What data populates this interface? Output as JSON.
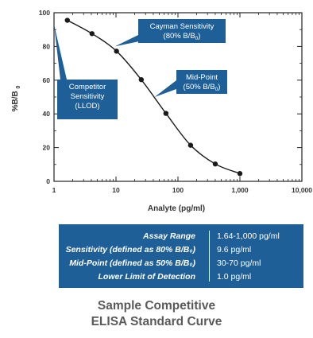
{
  "chart_data": {
    "type": "line",
    "xscale": "log",
    "xlabel": "Analyte (pg/ml)",
    "ylabel": "%B/B₀",
    "xlim": [
      1,
      10000
    ],
    "ylim": [
      0,
      100
    ],
    "x_ticks": [
      "1",
      "10",
      "100",
      "1,000",
      "10,000"
    ],
    "y_ticks": [
      "0",
      "20",
      "40",
      "60",
      "80",
      "100"
    ],
    "grid": false,
    "points": [
      {
        "x": 1.64,
        "y": 95.5
      },
      {
        "x": 4.1,
        "y": 87.6
      },
      {
        "x": 10.2,
        "y": 77.2
      },
      {
        "x": 25.6,
        "y": 60.3
      },
      {
        "x": 64,
        "y": 40.3
      },
      {
        "x": 160,
        "y": 21.4
      },
      {
        "x": 400,
        "y": 10.3
      },
      {
        "x": 1000,
        "y": 4.6
      }
    ],
    "annotations": {
      "cayman": [
        "Cayman Sensitivity",
        "(80% B/B₀)"
      ],
      "midpoint": [
        "Mid-Point",
        "(50% B/B₀)"
      ],
      "competitor": [
        "Competitor",
        "Sensitivity",
        "(LLOD)"
      ]
    }
  },
  "summary": {
    "rows": [
      {
        "label": "Assay Range",
        "value": "1.64-1,000 pg/ml"
      },
      {
        "label": "Sensitivity (defined as 80% B/B₀)",
        "value": "9.6 pg/ml"
      },
      {
        "label": "Mid-Point (defined as 50% B/B₀)",
        "value": "30-70 pg/ml"
      },
      {
        "label": "Lower Limit of Detection",
        "value": "1.0 pg/ml"
      }
    ]
  },
  "caption": {
    "line1": "Sample Competitive",
    "line2": "ELISA Standard Curve"
  },
  "colors": {
    "accent": "#1e5f98",
    "curve": "#1a1a1a",
    "text": "#333333"
  }
}
